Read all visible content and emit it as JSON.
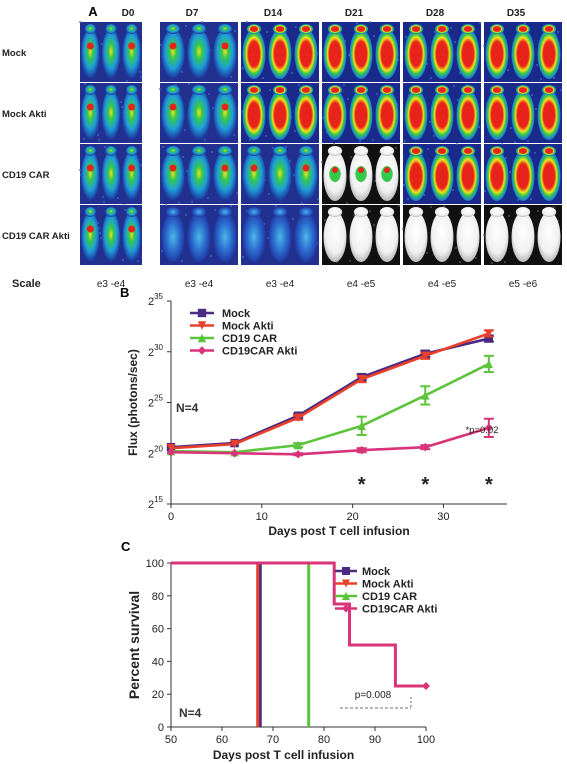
{
  "panel_a": {
    "letter": "A",
    "days": [
      "D0",
      "D7",
      "D14",
      "D21",
      "D28",
      "D35"
    ],
    "rows": [
      "Mock",
      "Mock Akti",
      "CD19 CAR",
      "CD19 CAR Akti"
    ],
    "scale_label": "Scale",
    "scales": [
      "e3 -e4",
      "e3 -e4",
      "e3 -e4",
      "e4 -e5",
      "e4 -e5",
      "e5 -e6"
    ]
  },
  "panel_b": {
    "letter": "B",
    "annotation_n": "N=4",
    "annotation_p": "*p=0.02",
    "star": "*"
  },
  "panel_c": {
    "letter": "C",
    "annotation_n": "N=4",
    "annotation_p": "p=0.008"
  },
  "colors": {
    "mock": "#4b2a82",
    "mock_akti": "#e8402b",
    "cd19": "#5cc43a",
    "cd19_akti": "#d9347a"
  },
  "chart_data": [
    {
      "type": "line",
      "panel": "B",
      "xlabel": "Days post T cell infusion",
      "ylabel": "Flux (photons/sec)",
      "xlim": [
        0,
        37
      ],
      "ylim_log2": [
        15,
        35
      ],
      "x_ticks": [
        "0",
        "10",
        "20",
        "30"
      ],
      "y_ticks": [
        {
          "base": "2",
          "exp": "15",
          "value": 15
        },
        {
          "base": "2",
          "exp": "20",
          "value": 20
        },
        {
          "base": "2",
          "exp": "25",
          "value": 25
        },
        {
          "base": "2",
          "exp": "30",
          "value": 30
        },
        {
          "base": "2",
          "exp": "35",
          "value": 35
        }
      ],
      "legend_position": "top-left",
      "series": [
        {
          "name": "Mock",
          "color": "#4b2a82",
          "marker": "square",
          "x": [
            0,
            7,
            14,
            21,
            28,
            35
          ],
          "y_log2": [
            20.6,
            21.0,
            23.7,
            27.5,
            29.8,
            31.3
          ],
          "err": [
            0,
            0,
            0.2,
            0.3,
            0.3,
            0.3
          ]
        },
        {
          "name": "Mock Akti",
          "color": "#e8402b",
          "marker": "triangle-down",
          "x": [
            0,
            7,
            14,
            21,
            28,
            35
          ],
          "y_log2": [
            20.5,
            20.9,
            23.5,
            27.3,
            29.6,
            31.8
          ],
          "err": [
            0,
            0,
            0.2,
            0.3,
            0.3,
            0.3
          ]
        },
        {
          "name": "CD19 CAR",
          "color": "#5cc43a",
          "marker": "triangle-up",
          "x": [
            0,
            7,
            14,
            21,
            28,
            35
          ],
          "y_log2": [
            20.2,
            20.1,
            20.8,
            22.7,
            25.7,
            28.8
          ],
          "err": [
            0,
            0,
            0.2,
            0.9,
            0.9,
            0.8
          ]
        },
        {
          "name": "CD19CAR Akti",
          "color": "#d9347a",
          "marker": "diamond",
          "x": [
            0,
            7,
            14,
            21,
            28,
            35
          ],
          "y_log2": [
            20.1,
            20.0,
            19.9,
            20.3,
            20.6,
            22.5
          ],
          "err": [
            0,
            0,
            0.1,
            0.2,
            0.2,
            0.9
          ]
        }
      ],
      "significance_x": [
        21,
        28,
        35
      ]
    },
    {
      "type": "line",
      "panel": "C",
      "xlabel": "Days post T cell infusion",
      "ylabel": "Percent survival",
      "xlim": [
        50,
        100
      ],
      "ylim": [
        0,
        100
      ],
      "x_ticks": [
        "50",
        "60",
        "70",
        "80",
        "90",
        "100"
      ],
      "y_ticks": [
        "0",
        "20",
        "40",
        "60",
        "80",
        "100"
      ],
      "legend_position": "top-right",
      "series": [
        {
          "name": "Mock",
          "color": "#4b2a82",
          "steps": [
            [
              50,
              100
            ],
            [
              67.5,
              100
            ],
            [
              67.5,
              0
            ]
          ]
        },
        {
          "name": "Mock Akti",
          "color": "#e8402b",
          "steps": [
            [
              50,
              100
            ],
            [
              67,
              100
            ],
            [
              67,
              0
            ]
          ]
        },
        {
          "name": "CD19 CAR",
          "color": "#5cc43a",
          "steps": [
            [
              50,
              100
            ],
            [
              77,
              100
            ],
            [
              77,
              0
            ]
          ]
        },
        {
          "name": "CD19CAR Akti",
          "color": "#d9347a",
          "steps": [
            [
              50,
              100
            ],
            [
              82,
              100
            ],
            [
              82,
              75
            ],
            [
              85,
              75
            ],
            [
              85,
              50
            ],
            [
              94,
              50
            ],
            [
              94,
              25
            ],
            [
              100,
              25
            ]
          ]
        }
      ]
    }
  ]
}
